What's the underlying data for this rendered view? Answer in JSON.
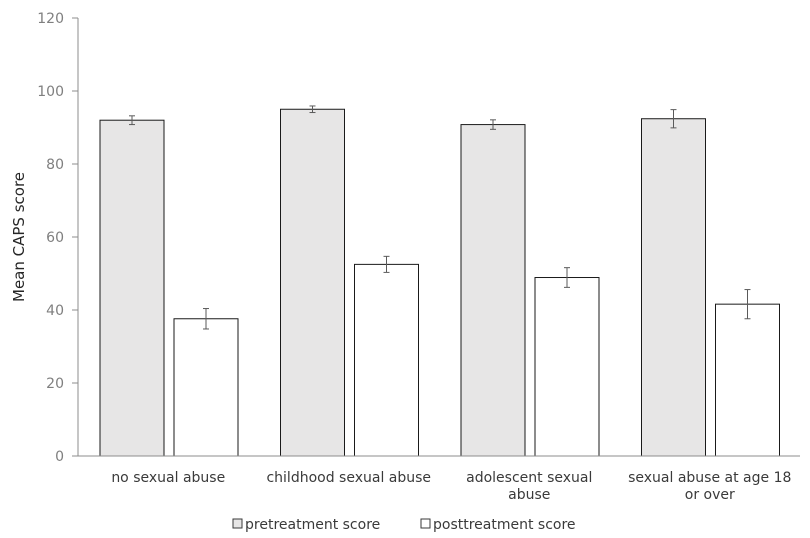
{
  "chart_data": {
    "type": "bar",
    "title": "",
    "xlabel": "",
    "ylabel": "Mean CAPS score",
    "ylim": [
      0,
      120
    ],
    "yticks": [
      0,
      20,
      40,
      60,
      80,
      100,
      120
    ],
    "grid": false,
    "legend_position": "bottom",
    "categories": [
      [
        "no sexual abuse"
      ],
      [
        "childhood sexual abuse"
      ],
      [
        "adolescent sexual",
        "abuse"
      ],
      [
        "sexual abuse at age 18",
        "or over"
      ]
    ],
    "series": [
      {
        "name": "pretreatment score",
        "color": "#e7e6e6",
        "values": [
          92,
          95,
          90.8,
          92.4
        ],
        "errors": [
          1.2,
          0.9,
          1.3,
          2.5
        ]
      },
      {
        "name": "posttreatment score",
        "color": "#ffffff",
        "values": [
          37.6,
          52.5,
          48.9,
          41.6
        ],
        "errors": [
          2.8,
          2.2,
          2.7,
          4.0
        ]
      }
    ]
  }
}
